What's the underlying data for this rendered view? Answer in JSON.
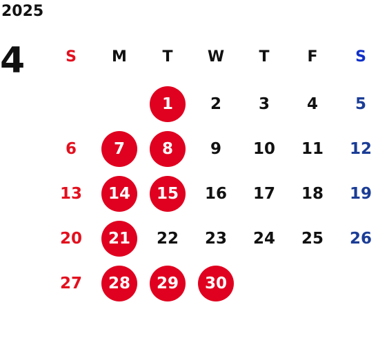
{
  "year": "2025",
  "month": "4",
  "weekdays": [
    "S",
    "M",
    "T",
    "W",
    "T",
    "F",
    "S"
  ],
  "weeks": [
    [
      "",
      "",
      "1",
      "2",
      "3",
      "4",
      "5"
    ],
    [
      "6",
      "7",
      "8",
      "9",
      "10",
      "11",
      "12"
    ],
    [
      "13",
      "14",
      "15",
      "16",
      "17",
      "18",
      "19"
    ],
    [
      "20",
      "21",
      "22",
      "23",
      "24",
      "25",
      "26"
    ],
    [
      "27",
      "28",
      "29",
      "30",
      "",
      "",
      ""
    ]
  ],
  "highlighted_days": [
    "1",
    "7",
    "8",
    "14",
    "15",
    "21",
    "28",
    "29",
    "30"
  ],
  "colors": {
    "sunday": "#e3101e",
    "saturday": "#1b3d96",
    "highlight": "#e0001f"
  }
}
